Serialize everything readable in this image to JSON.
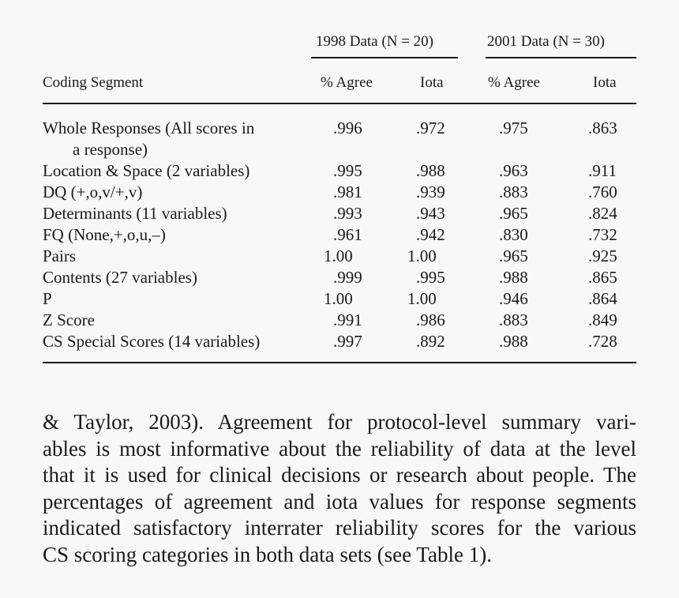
{
  "table": {
    "group_headers": [
      {
        "label": "1998 Data (N = 20)"
      },
      {
        "label": "2001 Data (N = 30)"
      }
    ],
    "column_headers": [
      "Coding Segment",
      "% Agree",
      "Iota",
      "% Agree",
      "Iota"
    ],
    "rows": [
      {
        "segment": "Whole Responses (All scores in",
        "segment_cont": "a response)",
        "v1998_agree": ".996",
        "v1998_iota": ".972",
        "v2001_agree": ".975",
        "v2001_iota": ".863"
      },
      {
        "segment": "Location & Space (2 variables)",
        "v1998_agree": ".995",
        "v1998_iota": ".988",
        "v2001_agree": ".963",
        "v2001_iota": ".911"
      },
      {
        "segment": "DQ (+,o,v/+,v)",
        "v1998_agree": ".981",
        "v1998_iota": ".939",
        "v2001_agree": ".883",
        "v2001_iota": ".760"
      },
      {
        "segment": "Determinants (11 variables)",
        "v1998_agree": ".993",
        "v1998_iota": ".943",
        "v2001_agree": ".965",
        "v2001_iota": ".824"
      },
      {
        "segment": "FQ (None,+,o,u,–)",
        "v1998_agree": ".961",
        "v1998_iota": ".942",
        "v2001_agree": ".830",
        "v2001_iota": ".732"
      },
      {
        "segment": "Pairs",
        "v1998_agree": "1.00",
        "v1998_iota": "1.00",
        "v2001_agree": ".965",
        "v2001_iota": ".925"
      },
      {
        "segment": "Contents (27 variables)",
        "v1998_agree": ".999",
        "v1998_iota": ".995",
        "v2001_agree": ".988",
        "v2001_iota": ".865"
      },
      {
        "segment": "P",
        "v1998_agree": "1.00",
        "v1998_iota": "1.00",
        "v2001_agree": ".946",
        "v2001_iota": ".864"
      },
      {
        "segment": "Z Score",
        "v1998_agree": ".991",
        "v1998_iota": ".986",
        "v2001_agree": ".883",
        "v2001_iota": ".849"
      },
      {
        "segment": "CS Special Scores (14 variables)",
        "v1998_agree": ".997",
        "v1998_iota": ".892",
        "v2001_agree": ".988",
        "v2001_iota": ".728"
      }
    ]
  },
  "paragraph": {
    "lines": [
      "& Taylor, 2003). Agreement for protocol-level summary vari-",
      "ables is most informative about the reliability of data at the level",
      "that it is used for clinical decisions or research about people. The",
      "percentages of agreement and iota values for response segments",
      "indicated satisfactory interrater reliability scores for the various",
      "CS scoring categories in both data sets (see Table 1)."
    ]
  }
}
